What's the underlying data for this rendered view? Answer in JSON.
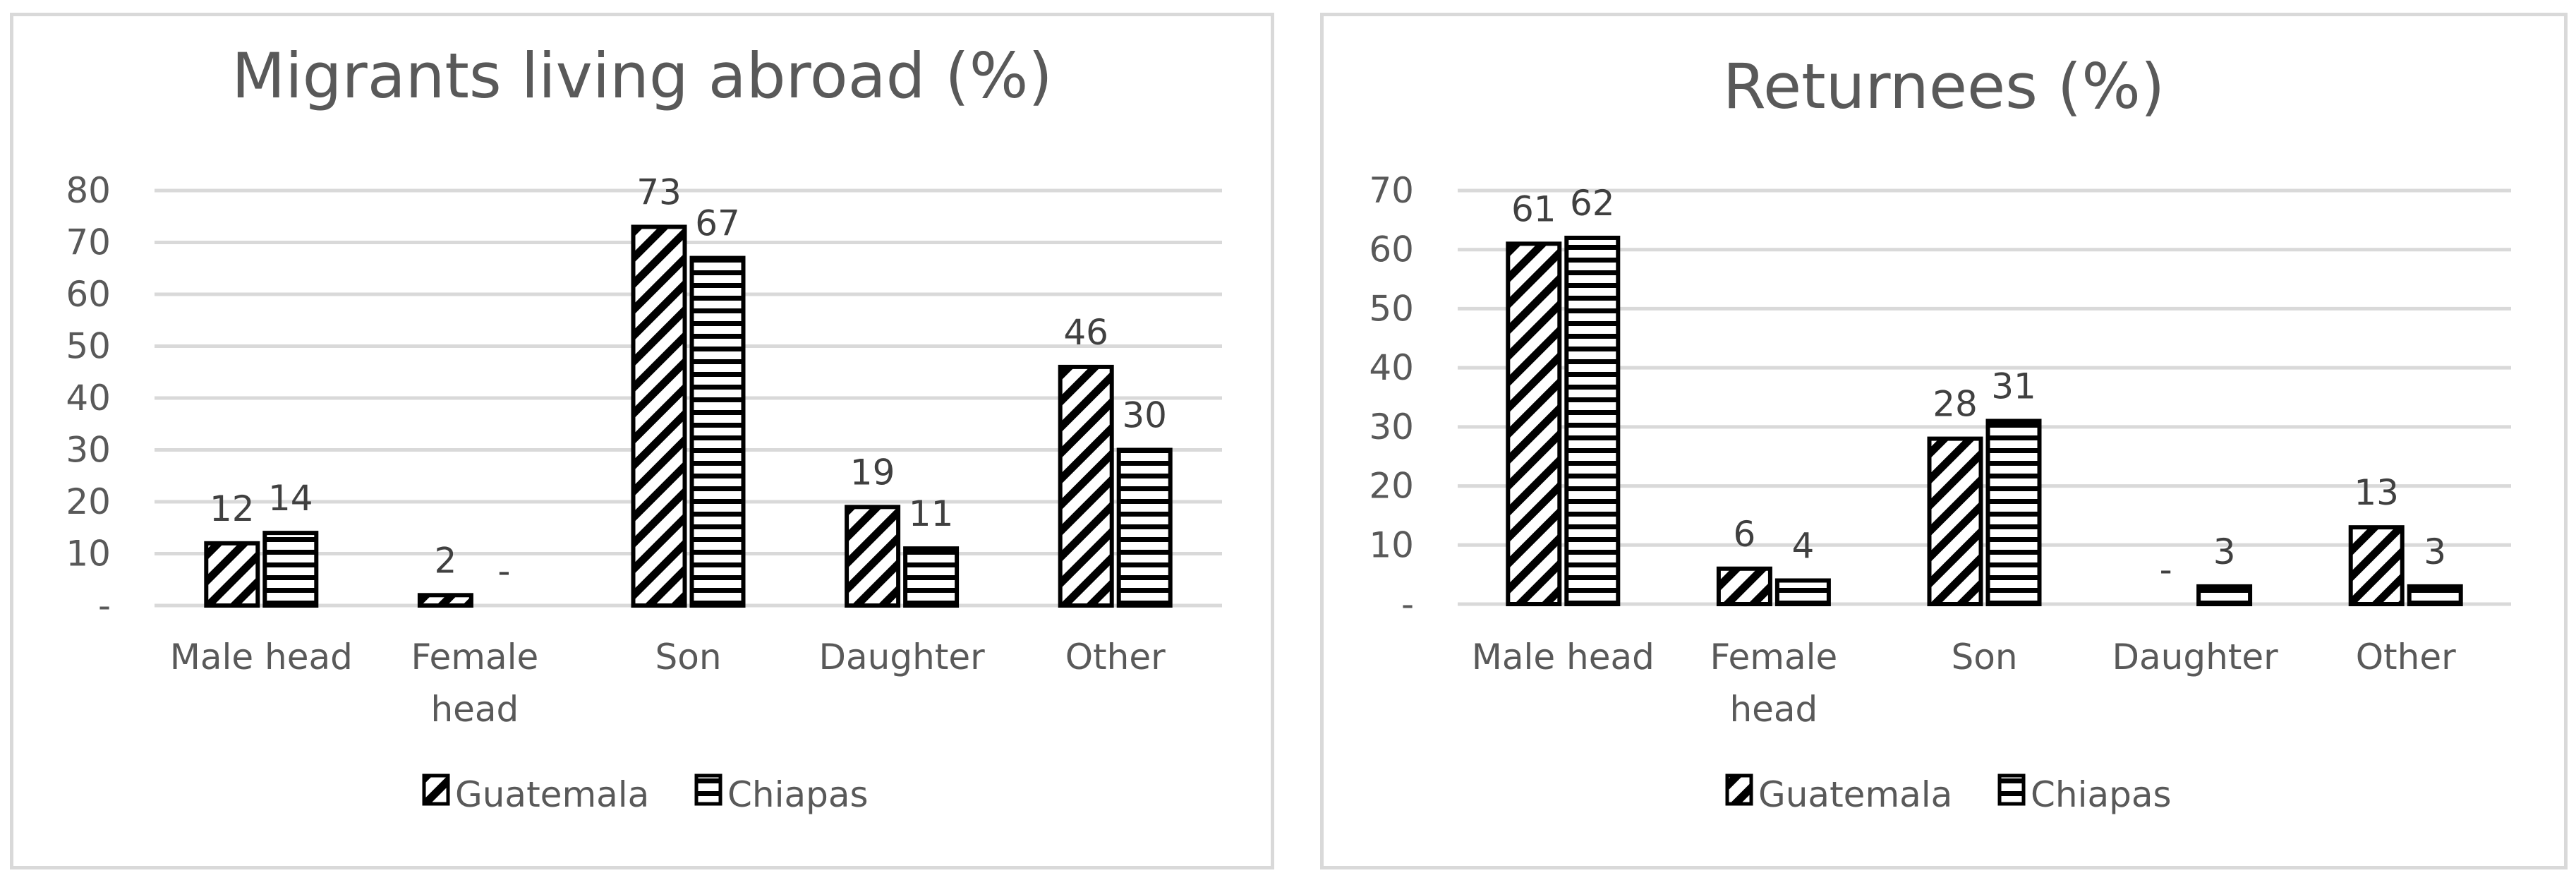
{
  "chart_data": [
    {
      "type": "bar",
      "title": "Migrants living abroad (%)",
      "categories": [
        [
          "Male head"
        ],
        [
          "Female",
          "head"
        ],
        [
          "Son"
        ],
        [
          "Daughter"
        ],
        [
          "Other"
        ]
      ],
      "series": [
        {
          "name": "Guatemala",
          "values": [
            12,
            2,
            73,
            19,
            46
          ],
          "labels": [
            "12",
            "2",
            "73",
            "19",
            "46"
          ]
        },
        {
          "name": "Chiapas",
          "values": [
            14,
            0,
            67,
            11,
            30
          ],
          "labels": [
            "14",
            "-",
            "67",
            "11",
            "30"
          ]
        }
      ],
      "ylim": [
        0,
        80
      ],
      "yticks": [
        "-",
        "10",
        "20",
        "30",
        "40",
        "50",
        "60",
        "70",
        "80"
      ],
      "grid": true,
      "legend_position": "bottom"
    },
    {
      "type": "bar",
      "title": "Returnees (%)",
      "categories": [
        [
          "Male head"
        ],
        [
          "Female",
          "head"
        ],
        [
          "Son"
        ],
        [
          "Daughter"
        ],
        [
          "Other"
        ]
      ],
      "series": [
        {
          "name": "Guatemala",
          "values": [
            61,
            6,
            28,
            0,
            13
          ],
          "labels": [
            "61",
            "6",
            "28",
            "-",
            "13"
          ]
        },
        {
          "name": "Chiapas",
          "values": [
            62,
            4,
            31,
            3,
            3
          ],
          "labels": [
            "62",
            "4",
            "31",
            "3",
            "3"
          ]
        }
      ],
      "ylim": [
        0,
        70
      ],
      "yticks": [
        "-",
        "10",
        "20",
        "30",
        "40",
        "50",
        "60",
        "70"
      ],
      "grid": true,
      "legend_position": "bottom"
    }
  ],
  "colors": {
    "bar_fill": "#ffffff",
    "bar_stroke": "#000000",
    "pattern": "#000000",
    "grid": "#d9d9d9",
    "text": "#595959"
  }
}
